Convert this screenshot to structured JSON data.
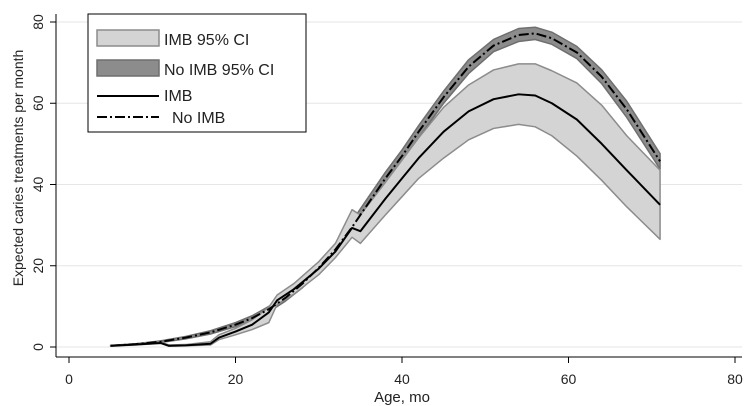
{
  "chart_data": {
    "type": "line",
    "title": "",
    "xlabel": "Age, mo",
    "ylabel": "Expected caries treatments per month",
    "xlim": [
      0,
      80
    ],
    "ylim": [
      0,
      80
    ],
    "xticks": [
      0,
      20,
      40,
      60,
      80
    ],
    "yticks": [
      0,
      20,
      40,
      60,
      80
    ],
    "grid": "horizontal",
    "legend_position": "top-left",
    "legend": [
      {
        "label": "IMB 95% CI",
        "kind": "band",
        "color": "#d4d4d4"
      },
      {
        "label": "No IMB 95% CI",
        "kind": "band",
        "color": "#8c8c8c"
      },
      {
        "label": "IMB",
        "kind": "solid",
        "color": "#000000"
      },
      {
        "label": "No IMB",
        "kind": "dashdot",
        "color": "#000000"
      }
    ],
    "series": [
      {
        "name": "IMB",
        "style": "solid",
        "x": [
          5,
          8,
          11,
          12,
          14,
          17,
          18,
          20,
          22,
          24,
          25,
          27,
          30,
          32,
          34,
          35,
          38,
          40,
          42,
          45,
          48,
          51,
          54,
          56,
          58,
          61,
          64,
          67,
          71
        ],
        "y": [
          0.3,
          0.6,
          1.0,
          0.3,
          0.4,
          0.8,
          2.3,
          3.8,
          5.5,
          8.5,
          11.5,
          14.2,
          19.3,
          23.5,
          29.3,
          28.5,
          36.5,
          41.5,
          46.5,
          53.0,
          58.0,
          61.0,
          62.2,
          61.9,
          60.0,
          56.0,
          50.0,
          43.5,
          35.0
        ]
      },
      {
        "name": "IMB 95% CI",
        "style": "band",
        "x": [
          5,
          8,
          11,
          12,
          14,
          17,
          18,
          20,
          22,
          24,
          25,
          27,
          30,
          32,
          34,
          35,
          38,
          40,
          42,
          45,
          48,
          51,
          54,
          56,
          58,
          61,
          64,
          67,
          71
        ],
        "lower": [
          0.2,
          0.5,
          0.9,
          0.2,
          0.3,
          0.5,
          1.8,
          3.0,
          4.3,
          6.0,
          10.5,
          13.0,
          17.8,
          22.0,
          27.0,
          25.5,
          32.5,
          37.0,
          41.5,
          46.5,
          51.0,
          53.8,
          54.8,
          54.2,
          52.0,
          47.0,
          41.0,
          34.5,
          26.5
        ],
        "upper": [
          0.4,
          0.7,
          1.2,
          0.5,
          0.6,
          1.3,
          3.0,
          4.6,
          6.7,
          9.8,
          12.8,
          15.6,
          21.0,
          25.5,
          33.8,
          32.5,
          40.5,
          46.0,
          51.5,
          59.0,
          64.5,
          68.2,
          69.7,
          69.7,
          68.0,
          65.0,
          59.5,
          52.0,
          43.5
        ]
      },
      {
        "name": "No IMB",
        "style": "dashdot",
        "x": [
          5,
          8,
          11,
          14,
          17,
          20,
          22,
          24,
          26,
          28,
          30,
          32,
          34,
          36,
          38,
          40,
          42,
          45,
          48,
          51,
          54,
          56,
          58,
          61,
          64,
          67,
          71
        ],
        "y": [
          0.3,
          0.7,
          1.3,
          2.3,
          3.6,
          5.5,
          7.1,
          9.3,
          12.1,
          15.5,
          19.5,
          24.0,
          29.5,
          35.5,
          41.5,
          47.0,
          53.0,
          61.5,
          69.0,
          74.2,
          76.8,
          77.2,
          76.0,
          72.5,
          66.5,
          58.5,
          45.7
        ]
      },
      {
        "name": "No IMB 95% CI",
        "style": "band",
        "x": [
          5,
          8,
          11,
          14,
          17,
          20,
          22,
          24,
          26,
          28,
          30,
          32,
          34,
          36,
          38,
          40,
          42,
          45,
          48,
          51,
          54,
          56,
          58,
          61,
          64,
          67,
          71
        ],
        "lower": [
          0.2,
          0.6,
          1.1,
          2.0,
          3.2,
          5.0,
          6.5,
          8.6,
          11.3,
          14.5,
          18.4,
          22.8,
          28.0,
          34.0,
          40.0,
          45.5,
          51.5,
          60.0,
          67.3,
          72.7,
          75.2,
          75.7,
          74.5,
          71.0,
          64.8,
          56.5,
          43.8
        ],
        "upper": [
          0.4,
          0.8,
          1.5,
          2.6,
          4.0,
          6.0,
          7.7,
          10.0,
          12.9,
          16.5,
          20.6,
          25.2,
          31.0,
          37.0,
          43.0,
          48.5,
          54.5,
          63.0,
          70.7,
          75.7,
          78.4,
          78.7,
          77.5,
          74.0,
          68.2,
          60.5,
          47.6
        ]
      }
    ]
  }
}
